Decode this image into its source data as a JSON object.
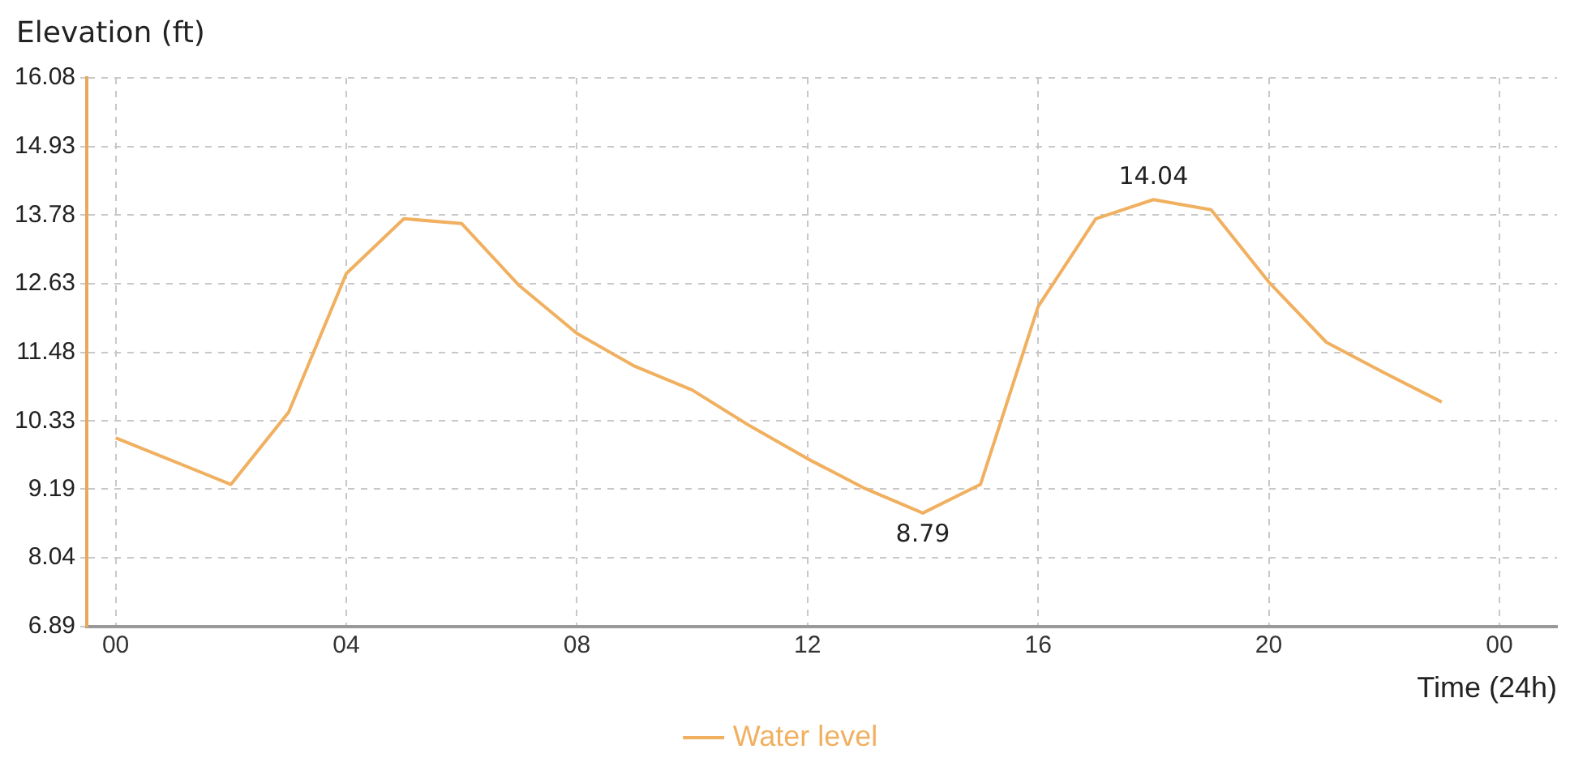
{
  "chart_data": {
    "type": "line",
    "xlabel": "Time (24h)",
    "ylabel": "Elevation (ft)",
    "x": [
      0,
      2,
      3,
      4,
      5,
      6,
      7,
      8,
      9,
      10,
      11,
      12,
      13,
      14,
      15,
      16,
      17,
      18,
      19,
      20,
      21,
      22,
      23
    ],
    "series": [
      {
        "name": "Water level",
        "color": "#f0b060",
        "values": [
          10.05,
          9.27,
          10.48,
          12.8,
          13.72,
          13.64,
          12.6,
          11.8,
          11.25,
          10.85,
          10.25,
          9.7,
          9.2,
          8.79,
          9.27,
          12.25,
          13.72,
          14.04,
          13.87,
          12.66,
          11.65,
          11.14,
          10.65
        ],
        "value_labels": [
          null,
          null,
          null,
          null,
          null,
          null,
          null,
          null,
          null,
          null,
          null,
          null,
          null,
          "8.79",
          null,
          null,
          null,
          "14.04",
          null,
          null,
          null,
          null,
          null
        ]
      }
    ],
    "xlim": [
      -0.5,
      25
    ],
    "xticks": [
      {
        "value": 0,
        "label": "00"
      },
      {
        "value": 4,
        "label": "04"
      },
      {
        "value": 8,
        "label": "08"
      },
      {
        "value": 12,
        "label": "12"
      },
      {
        "value": 16,
        "label": "16"
      },
      {
        "value": 20,
        "label": "20"
      },
      {
        "value": 24,
        "label": "00"
      }
    ],
    "ylim": [
      6.89,
      16.08
    ],
    "yticks": [
      6.89,
      8.04,
      9.19,
      10.33,
      11.48,
      12.63,
      13.78,
      14.93,
      16.08
    ],
    "grid": true,
    "legend": "bottom",
    "marker": "none",
    "line_style": "solid"
  }
}
